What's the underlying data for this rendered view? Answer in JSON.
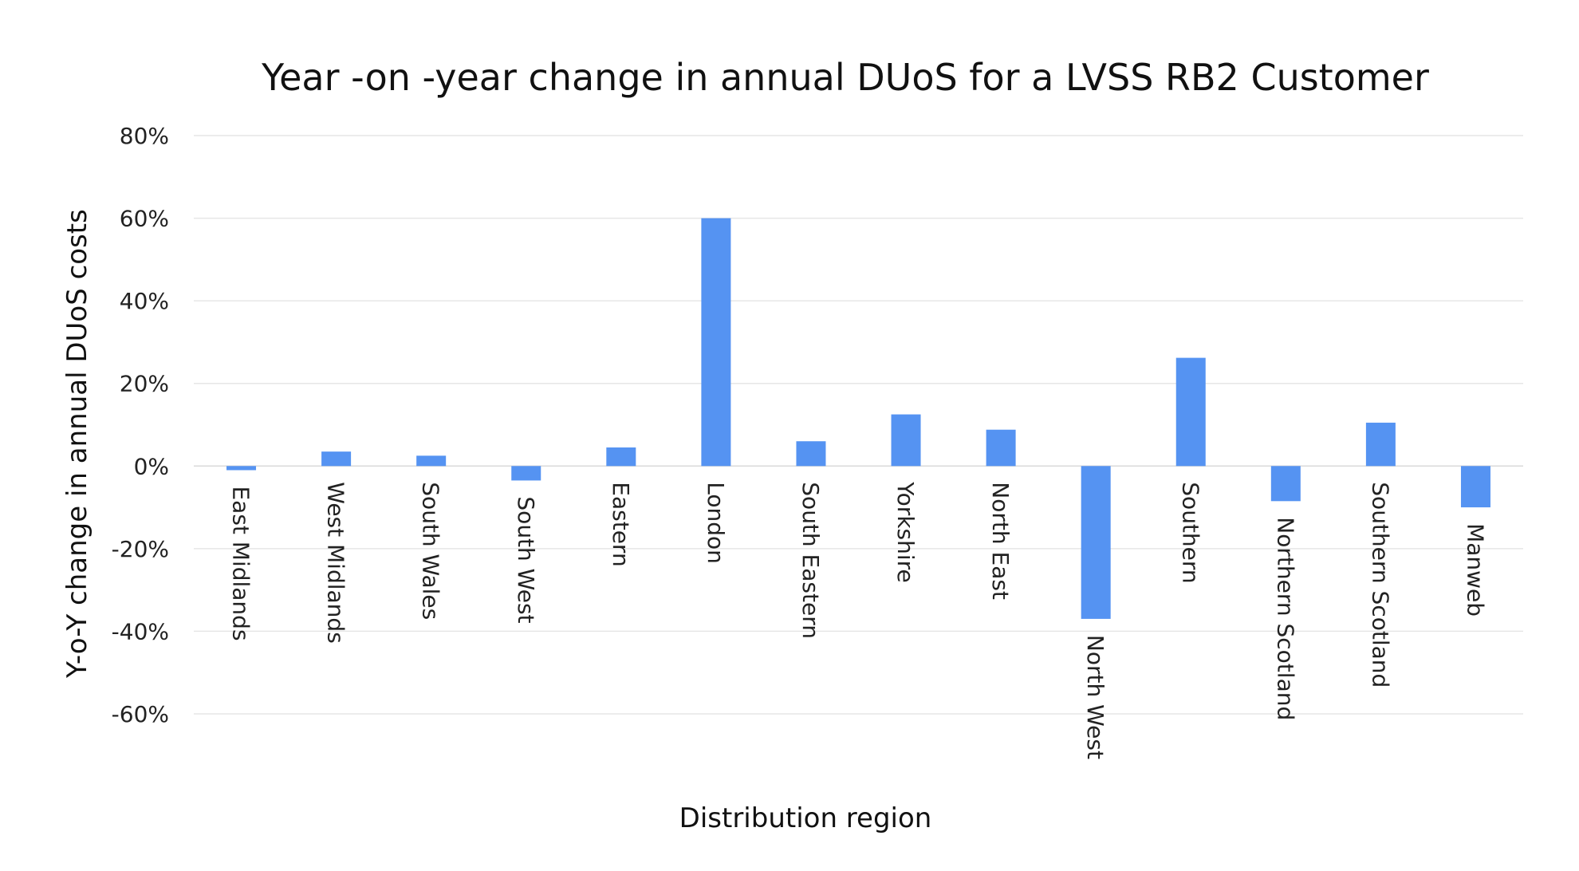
{
  "chart_data": {
    "type": "bar",
    "title": "Year -on -year change in annual DUoS for a LVSS RB2 Customer",
    "xlabel": "Distribution region",
    "ylabel": "Y-o-Y change in annual DUoS costs",
    "ylim": [
      -60,
      80
    ],
    "yticks": [
      80,
      60,
      40,
      20,
      0,
      -20,
      -40,
      -60
    ],
    "ytick_labels": [
      "80%",
      "60%",
      "40%",
      "20%",
      "0%",
      "-20%",
      "-40%",
      "-60%"
    ],
    "grid": true,
    "legend": "none",
    "bar_color": "#5593F2",
    "categories": [
      "East Midlands",
      "West Midlands",
      "South Wales",
      "South West",
      "Eastern",
      "London",
      "South Eastern",
      "Yorkshire",
      "North East",
      "North West",
      "Southern",
      "Northern Scotland",
      "Southern Scotland",
      "Manweb"
    ],
    "values": [
      -1,
      3.5,
      2.5,
      -3.5,
      4.5,
      60,
      6,
      12.5,
      8.8,
      -37,
      26.2,
      -8.5,
      10.5,
      -10
    ]
  }
}
